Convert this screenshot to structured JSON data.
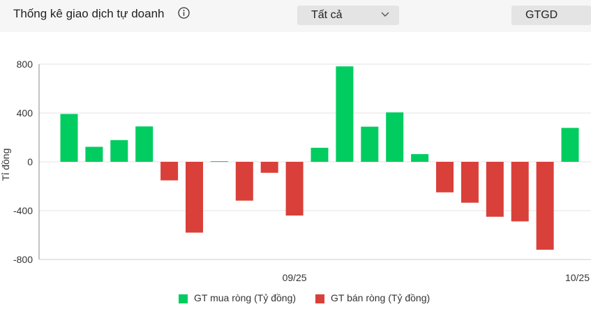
{
  "header": {
    "title": "Thống kê giao dịch tự doanh",
    "filter_selected": "Tất cả",
    "metric_label": "GTGD"
  },
  "colors": {
    "buy": "#00cc60",
    "sell": "#d9403a",
    "grid": "#e3e3e3",
    "axis": "#888888"
  },
  "chart_data": {
    "type": "bar",
    "ylabel": "Tỉ đồng",
    "ylim": [
      -800,
      800
    ],
    "yticks": [
      800,
      400,
      0,
      -400,
      -800
    ],
    "grid": true,
    "legend_position": "bottom",
    "x_tick_labels": [
      {
        "index": 9,
        "label": "09/25"
      },
      {
        "index": 20,
        "label": "10/25"
      }
    ],
    "values": [
      392,
      123,
      178,
      290,
      -152,
      -580,
      5,
      -318,
      -90,
      -440,
      115,
      782,
      288,
      405,
      63,
      -250,
      -335,
      -450,
      -488,
      -720,
      278
    ],
    "series": [
      {
        "name": "GT mua ròng (Tỷ đồng)",
        "sign": "positive"
      },
      {
        "name": "GT bán ròng (Tỷ đồng)",
        "sign": "negative"
      }
    ]
  }
}
